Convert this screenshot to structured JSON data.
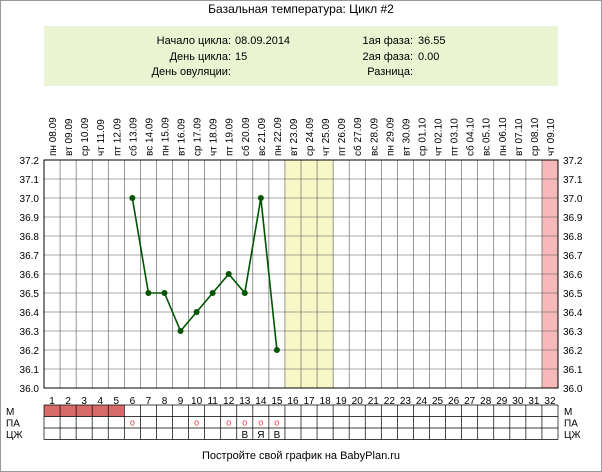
{
  "title": "Базальная температура: Цикл #2",
  "info": {
    "cycle_start_label": "Начало цикла:",
    "cycle_start_value": "08.09.2014",
    "cycle_day_label": "День цикла:",
    "cycle_day_value": "15",
    "ovulation_day_label": "День овуляции:",
    "ovulation_day_value": "",
    "phase1_label": "1ая фаза:",
    "phase1_value": "36.55",
    "phase2_label": "2ая фаза:",
    "phase2_value": "0.00",
    "difference_label": "Разница:",
    "difference_value": ""
  },
  "footer": "Постройте свой график на BabyPlan.ru",
  "colors": {
    "line": "#005500",
    "highlight": "#f7f7c8",
    "period": "#d96a6a",
    "end_column": "#f6b8b8",
    "info_bg": "#eaf3d2",
    "grid": "#000000"
  },
  "chart_data": {
    "type": "line",
    "title": "Базальная температура: Цикл #2",
    "dates": [
      "08.09",
      "09.09",
      "10.09",
      "11.09",
      "12.09",
      "13.09",
      "14.09",
      "15.09",
      "16.09",
      "17.09",
      "18.09",
      "19.09",
      "20.09",
      "21.09",
      "22.09",
      "23.09",
      "24.09",
      "25.09",
      "26.09",
      "27.09",
      "28.09",
      "29.09",
      "30.09",
      "01.10",
      "02.10",
      "03.10",
      "04.10",
      "05.10",
      "06.10",
      "07.10",
      "08.10",
      "09.10"
    ],
    "weekdays": [
      "пн",
      "вт",
      "ср",
      "чт",
      "пт",
      "сб",
      "вс",
      "пн",
      "вт",
      "ср",
      "чт",
      "пт",
      "сб",
      "вс",
      "пн",
      "вт",
      "ср",
      "чт",
      "пт",
      "сб",
      "вс",
      "пн",
      "вт",
      "ср",
      "чт",
      "пт",
      "сб",
      "вс",
      "пн",
      "вт",
      "ср",
      "чт"
    ],
    "days": [
      1,
      2,
      3,
      4,
      5,
      6,
      7,
      8,
      9,
      10,
      11,
      12,
      13,
      14,
      15,
      16,
      17,
      18,
      19,
      20,
      21,
      22,
      23,
      24,
      25,
      26,
      27,
      28,
      29,
      30,
      31,
      32
    ],
    "ylim": [
      36.0,
      37.2
    ],
    "yticks": [
      "37.2",
      "37.1",
      "37.0",
      "36.9",
      "36.8",
      "36.7",
      "36.6",
      "36.5",
      "36.4",
      "36.3",
      "36.2",
      "36.1",
      "36.0"
    ],
    "series": [
      {
        "values": [
          {
            "day": 6,
            "temp": 37.0
          },
          {
            "day": 7,
            "temp": 36.5
          },
          {
            "day": 8,
            "temp": 36.5
          },
          {
            "day": 9,
            "temp": 36.3
          },
          {
            "day": 10,
            "temp": 36.4
          },
          {
            "day": 11,
            "temp": 36.5
          },
          {
            "day": 12,
            "temp": 36.6
          },
          {
            "day": 13,
            "temp": 36.5
          },
          {
            "day": 14,
            "temp": 37.0
          },
          {
            "day": 15,
            "temp": 36.2
          }
        ]
      }
    ],
    "highlight_days": [
      16,
      17,
      18
    ],
    "end_column_day": 32,
    "rows": {
      "labels": [
        "М",
        "ПА",
        "ЦЖ"
      ],
      "menstruation_days": [
        1,
        2,
        3,
        4,
        5
      ],
      "intercourse_days": [
        6,
        10,
        12,
        13,
        14,
        15
      ],
      "intercourse_mark": "o",
      "discharge": [
        {
          "day": 13,
          "mark": "В"
        },
        {
          "day": 14,
          "mark": "Я"
        },
        {
          "day": 15,
          "mark": "В"
        }
      ]
    }
  }
}
